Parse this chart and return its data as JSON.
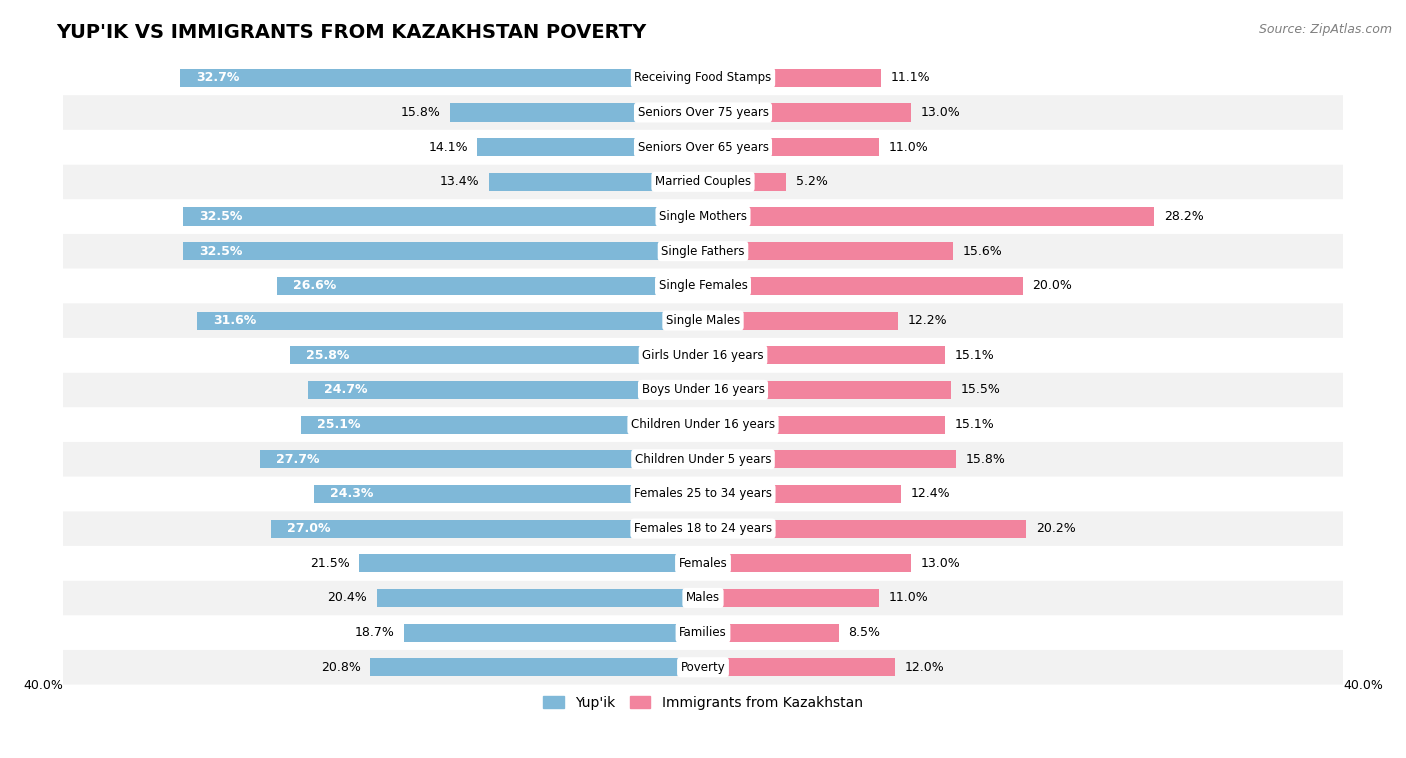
{
  "title": "YUP'IK VS IMMIGRANTS FROM KAZAKHSTAN POVERTY",
  "source": "Source: ZipAtlas.com",
  "categories": [
    "Poverty",
    "Families",
    "Males",
    "Females",
    "Females 18 to 24 years",
    "Females 25 to 34 years",
    "Children Under 5 years",
    "Children Under 16 years",
    "Boys Under 16 years",
    "Girls Under 16 years",
    "Single Males",
    "Single Females",
    "Single Fathers",
    "Single Mothers",
    "Married Couples",
    "Seniors Over 65 years",
    "Seniors Over 75 years",
    "Receiving Food Stamps"
  ],
  "yupik_values": [
    20.8,
    18.7,
    20.4,
    21.5,
    27.0,
    24.3,
    27.7,
    25.1,
    24.7,
    25.8,
    31.6,
    26.6,
    32.5,
    32.5,
    13.4,
    14.1,
    15.8,
    32.7
  ],
  "kazakhstan_values": [
    12.0,
    8.5,
    11.0,
    13.0,
    20.2,
    12.4,
    15.8,
    15.1,
    15.5,
    15.1,
    12.2,
    20.0,
    15.6,
    28.2,
    5.2,
    11.0,
    13.0,
    11.1
  ],
  "yupik_color": "#7fb8d8",
  "kazakhstan_color": "#f2849e",
  "yupik_label": "Yup'ik",
  "kazakhstan_label": "Immigrants from Kazakhstan",
  "xlim": 40.0,
  "bar_height": 0.52,
  "row_colors": [
    "#f2f2f2",
    "#ffffff"
  ],
  "title_fontsize": 14,
  "source_fontsize": 9,
  "value_fontsize": 9,
  "cat_fontsize": 8.5,
  "legend_fontsize": 10,
  "label_threshold": 22.0
}
